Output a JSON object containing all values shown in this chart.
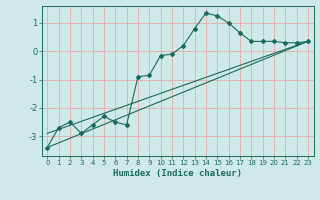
{
  "xlabel": "Humidex (Indice chaleur)",
  "ylabel": "",
  "bg_color": "#cfe8e8",
  "grid_color": "#e8a0a0",
  "line_color": "#1a6b5a",
  "xlim": [
    -0.5,
    23.5
  ],
  "ylim": [
    -3.7,
    1.6
  ],
  "yticks": [
    1,
    0,
    -1,
    -2,
    -3
  ],
  "xticks": [
    0,
    1,
    2,
    3,
    4,
    5,
    6,
    7,
    8,
    9,
    10,
    11,
    12,
    13,
    14,
    15,
    16,
    17,
    18,
    19,
    20,
    21,
    22,
    23
  ],
  "main_x": [
    0,
    1,
    2,
    3,
    4,
    5,
    6,
    7,
    8,
    9,
    10,
    11,
    12,
    13,
    14,
    15,
    16,
    17,
    18,
    19,
    20,
    21,
    22,
    23
  ],
  "main_y": [
    -3.4,
    -2.7,
    -2.5,
    -2.9,
    -2.6,
    -2.3,
    -2.5,
    -2.6,
    -0.9,
    -0.85,
    -0.15,
    -0.1,
    0.2,
    0.8,
    1.35,
    1.25,
    1.0,
    0.65,
    0.35,
    0.35,
    0.35,
    0.3,
    0.3,
    0.35
  ],
  "line1_x": [
    0,
    23
  ],
  "line1_y": [
    -3.4,
    0.35
  ],
  "line2_x": [
    0,
    23
  ],
  "line2_y": [
    -2.9,
    0.35
  ]
}
